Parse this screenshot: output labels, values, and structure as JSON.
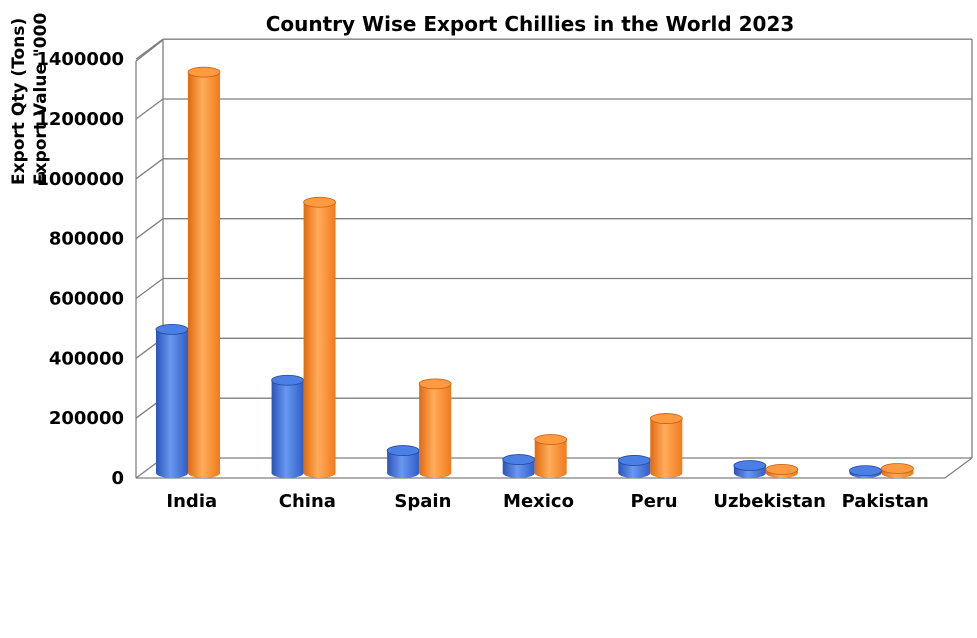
{
  "chart_data": {
    "type": "bar",
    "title": "Country Wise Export Chillies in the World 2023",
    "ylabel_lines": [
      "Export Qty (Tons)",
      "Export Value \"000"
    ],
    "categories": [
      "India",
      "China",
      "Spain",
      "Mexico",
      "Peru",
      "Uzbekistan",
      "Pakistan"
    ],
    "series": [
      {
        "values": [
          480000,
          310000,
          75000,
          45000,
          42000,
          25000,
          8000
        ]
      },
      {
        "values": [
          1340000,
          905000,
          298000,
          112000,
          182000,
          12000,
          15000
        ]
      }
    ],
    "ylim": [
      0,
      1400000
    ],
    "yticks": [
      "0",
      "200000",
      "400000",
      "600000",
      "800000",
      "1000000",
      "1200000",
      "1400000"
    ],
    "grid": true,
    "colors": [
      "#3c6fd8",
      "#ff8a2a"
    ]
  }
}
